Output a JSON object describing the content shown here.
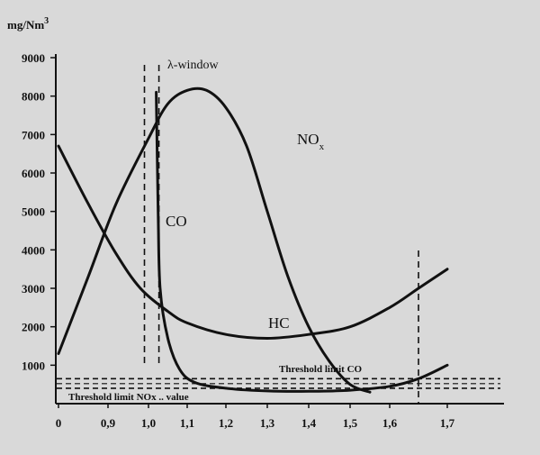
{
  "chart_data": {
    "type": "line",
    "ylabel": "mg/Nm",
    "ylabel_sup": "3",
    "y_ticks": [
      "1000",
      "2000",
      "3000",
      "4000",
      "5000",
      "6000",
      "7000",
      "8000",
      "9000"
    ],
    "x_tick_labels": [
      "0",
      "0,9",
      "1,0",
      "1,1",
      "1,2",
      "1,3",
      "1,4",
      "1,5",
      "1,6",
      "1,7"
    ],
    "ylim": [
      0,
      9000
    ],
    "x_axis_note": "x axis is broken between 0 and 0,9",
    "series": [
      {
        "name": "NO",
        "name_sub": "x",
        "points": [
          [
            0.8,
            1300
          ],
          [
            0.86,
            3300
          ],
          [
            0.92,
            5200
          ],
          [
            1.0,
            6900
          ],
          [
            1.05,
            7800
          ],
          [
            1.1,
            8150
          ],
          [
            1.15,
            8150
          ],
          [
            1.2,
            7700
          ],
          [
            1.25,
            6700
          ],
          [
            1.3,
            5000
          ],
          [
            1.35,
            3300
          ],
          [
            1.4,
            2000
          ],
          [
            1.45,
            1100
          ],
          [
            1.5,
            500
          ],
          [
            1.55,
            300
          ]
        ]
      },
      {
        "name": "HC",
        "points": [
          [
            0.8,
            6700
          ],
          [
            0.86,
            5200
          ],
          [
            0.92,
            3900
          ],
          [
            0.98,
            3000
          ],
          [
            1.05,
            2400
          ],
          [
            1.1,
            2100
          ],
          [
            1.2,
            1800
          ],
          [
            1.3,
            1700
          ],
          [
            1.4,
            1800
          ],
          [
            1.5,
            2000
          ],
          [
            1.6,
            2500
          ],
          [
            1.65,
            3000
          ],
          [
            1.7,
            3500
          ]
        ]
      },
      {
        "name": "CO",
        "points": [
          [
            1.02,
            8100
          ],
          [
            1.025,
            5000
          ],
          [
            1.03,
            3000
          ],
          [
            1.05,
            1700
          ],
          [
            1.08,
            900
          ],
          [
            1.12,
            550
          ],
          [
            1.2,
            400
          ],
          [
            1.3,
            330
          ],
          [
            1.4,
            320
          ],
          [
            1.5,
            350
          ],
          [
            1.6,
            450
          ],
          [
            1.65,
            650
          ],
          [
            1.7,
            1000
          ]
        ]
      }
    ],
    "lambda_window": {
      "label": "λ-window",
      "x": [
        0.99,
        1.02
      ]
    },
    "right_marker_x": 1.65,
    "thresholds": [
      {
        "label": "Threshold limit CO",
        "y": 650
      },
      {
        "label": "Threshold limit NOx .. value",
        "y": 400
      }
    ]
  }
}
